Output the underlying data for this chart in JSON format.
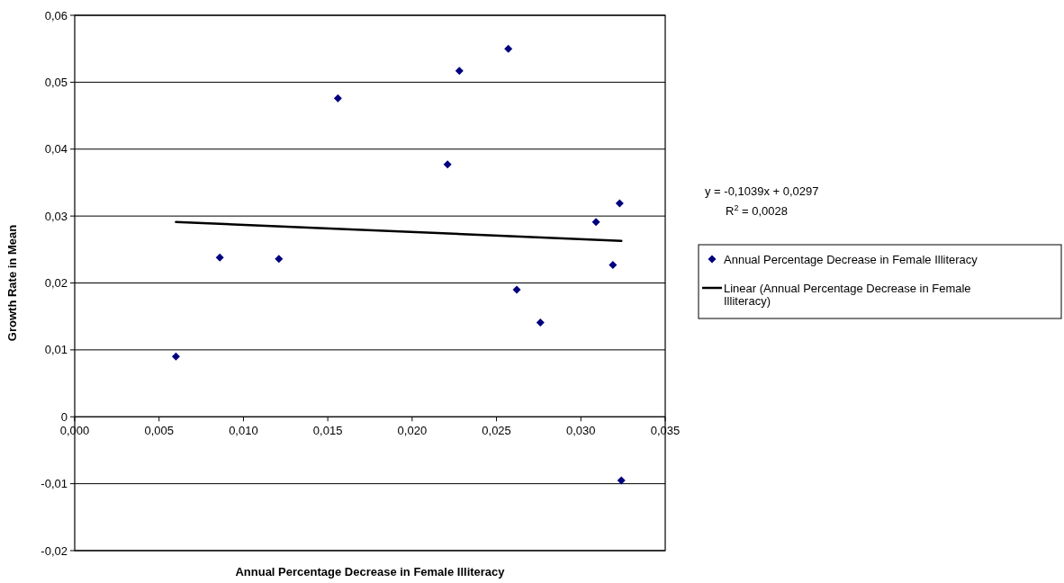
{
  "chart_data": {
    "type": "scatter",
    "xlabel": "Annual Percentage Decrease in Female Illiteracy",
    "ylabel": "Growth Rate in Mean",
    "x": [
      0.006,
      0.0086,
      0.0121,
      0.0156,
      0.0228,
      0.0257,
      0.0221,
      0.0323,
      0.0309,
      0.0319,
      0.0262,
      0.0276,
      0.0324
    ],
    "series": [
      {
        "name": "Annual Percentage Decrease in Female Illiteracy",
        "color": "#000080",
        "marker": "diamond",
        "values": [
          0.009,
          0.0238,
          0.0236,
          0.0476,
          0.0517,
          0.055,
          0.0377,
          0.0319,
          0.0291,
          0.0227,
          0.019,
          0.0141,
          -0.0095
        ]
      },
      {
        "name": "Linear (Annual Percentage Decrease in Female Illiteracy)",
        "type": "line",
        "color": "#000000",
        "marker": "none",
        "line_style": "solid",
        "x": [
          0.006,
          0.0324
        ],
        "values": [
          0.0291,
          0.0263
        ]
      }
    ],
    "xlim": [
      0,
      0.035
    ],
    "xticks": [
      {
        "value": 0,
        "label": "0,000"
      },
      {
        "value": 0.005,
        "label": "0,005"
      },
      {
        "value": 0.01,
        "label": "0,010"
      },
      {
        "value": 0.015,
        "label": "0,015"
      },
      {
        "value": 0.02,
        "label": "0,020"
      },
      {
        "value": 0.025,
        "label": "0,025"
      },
      {
        "value": 0.03,
        "label": "0,030"
      },
      {
        "value": 0.035,
        "label": "0,035"
      }
    ],
    "ylim": [
      -0.02,
      0.06
    ],
    "yticks": [
      {
        "value": -0.02,
        "label": "-0,02"
      },
      {
        "value": -0.01,
        "label": "-0,01"
      },
      0,
      {
        "value": 0.01,
        "label": "0,01"
      },
      {
        "value": 0.02,
        "label": "0,02"
      },
      {
        "value": 0.03,
        "label": "0,03"
      },
      {
        "value": 0.04,
        "label": "0,04"
      },
      {
        "value": 0.05,
        "label": "0,05"
      },
      {
        "value": 0.06,
        "label": "0,06"
      }
    ],
    "grid": "y",
    "legend": "right",
    "annotations": [
      "y = -0,1039x + 0,0297",
      "R$^{2}$ = 0,0028"
    ]
  }
}
